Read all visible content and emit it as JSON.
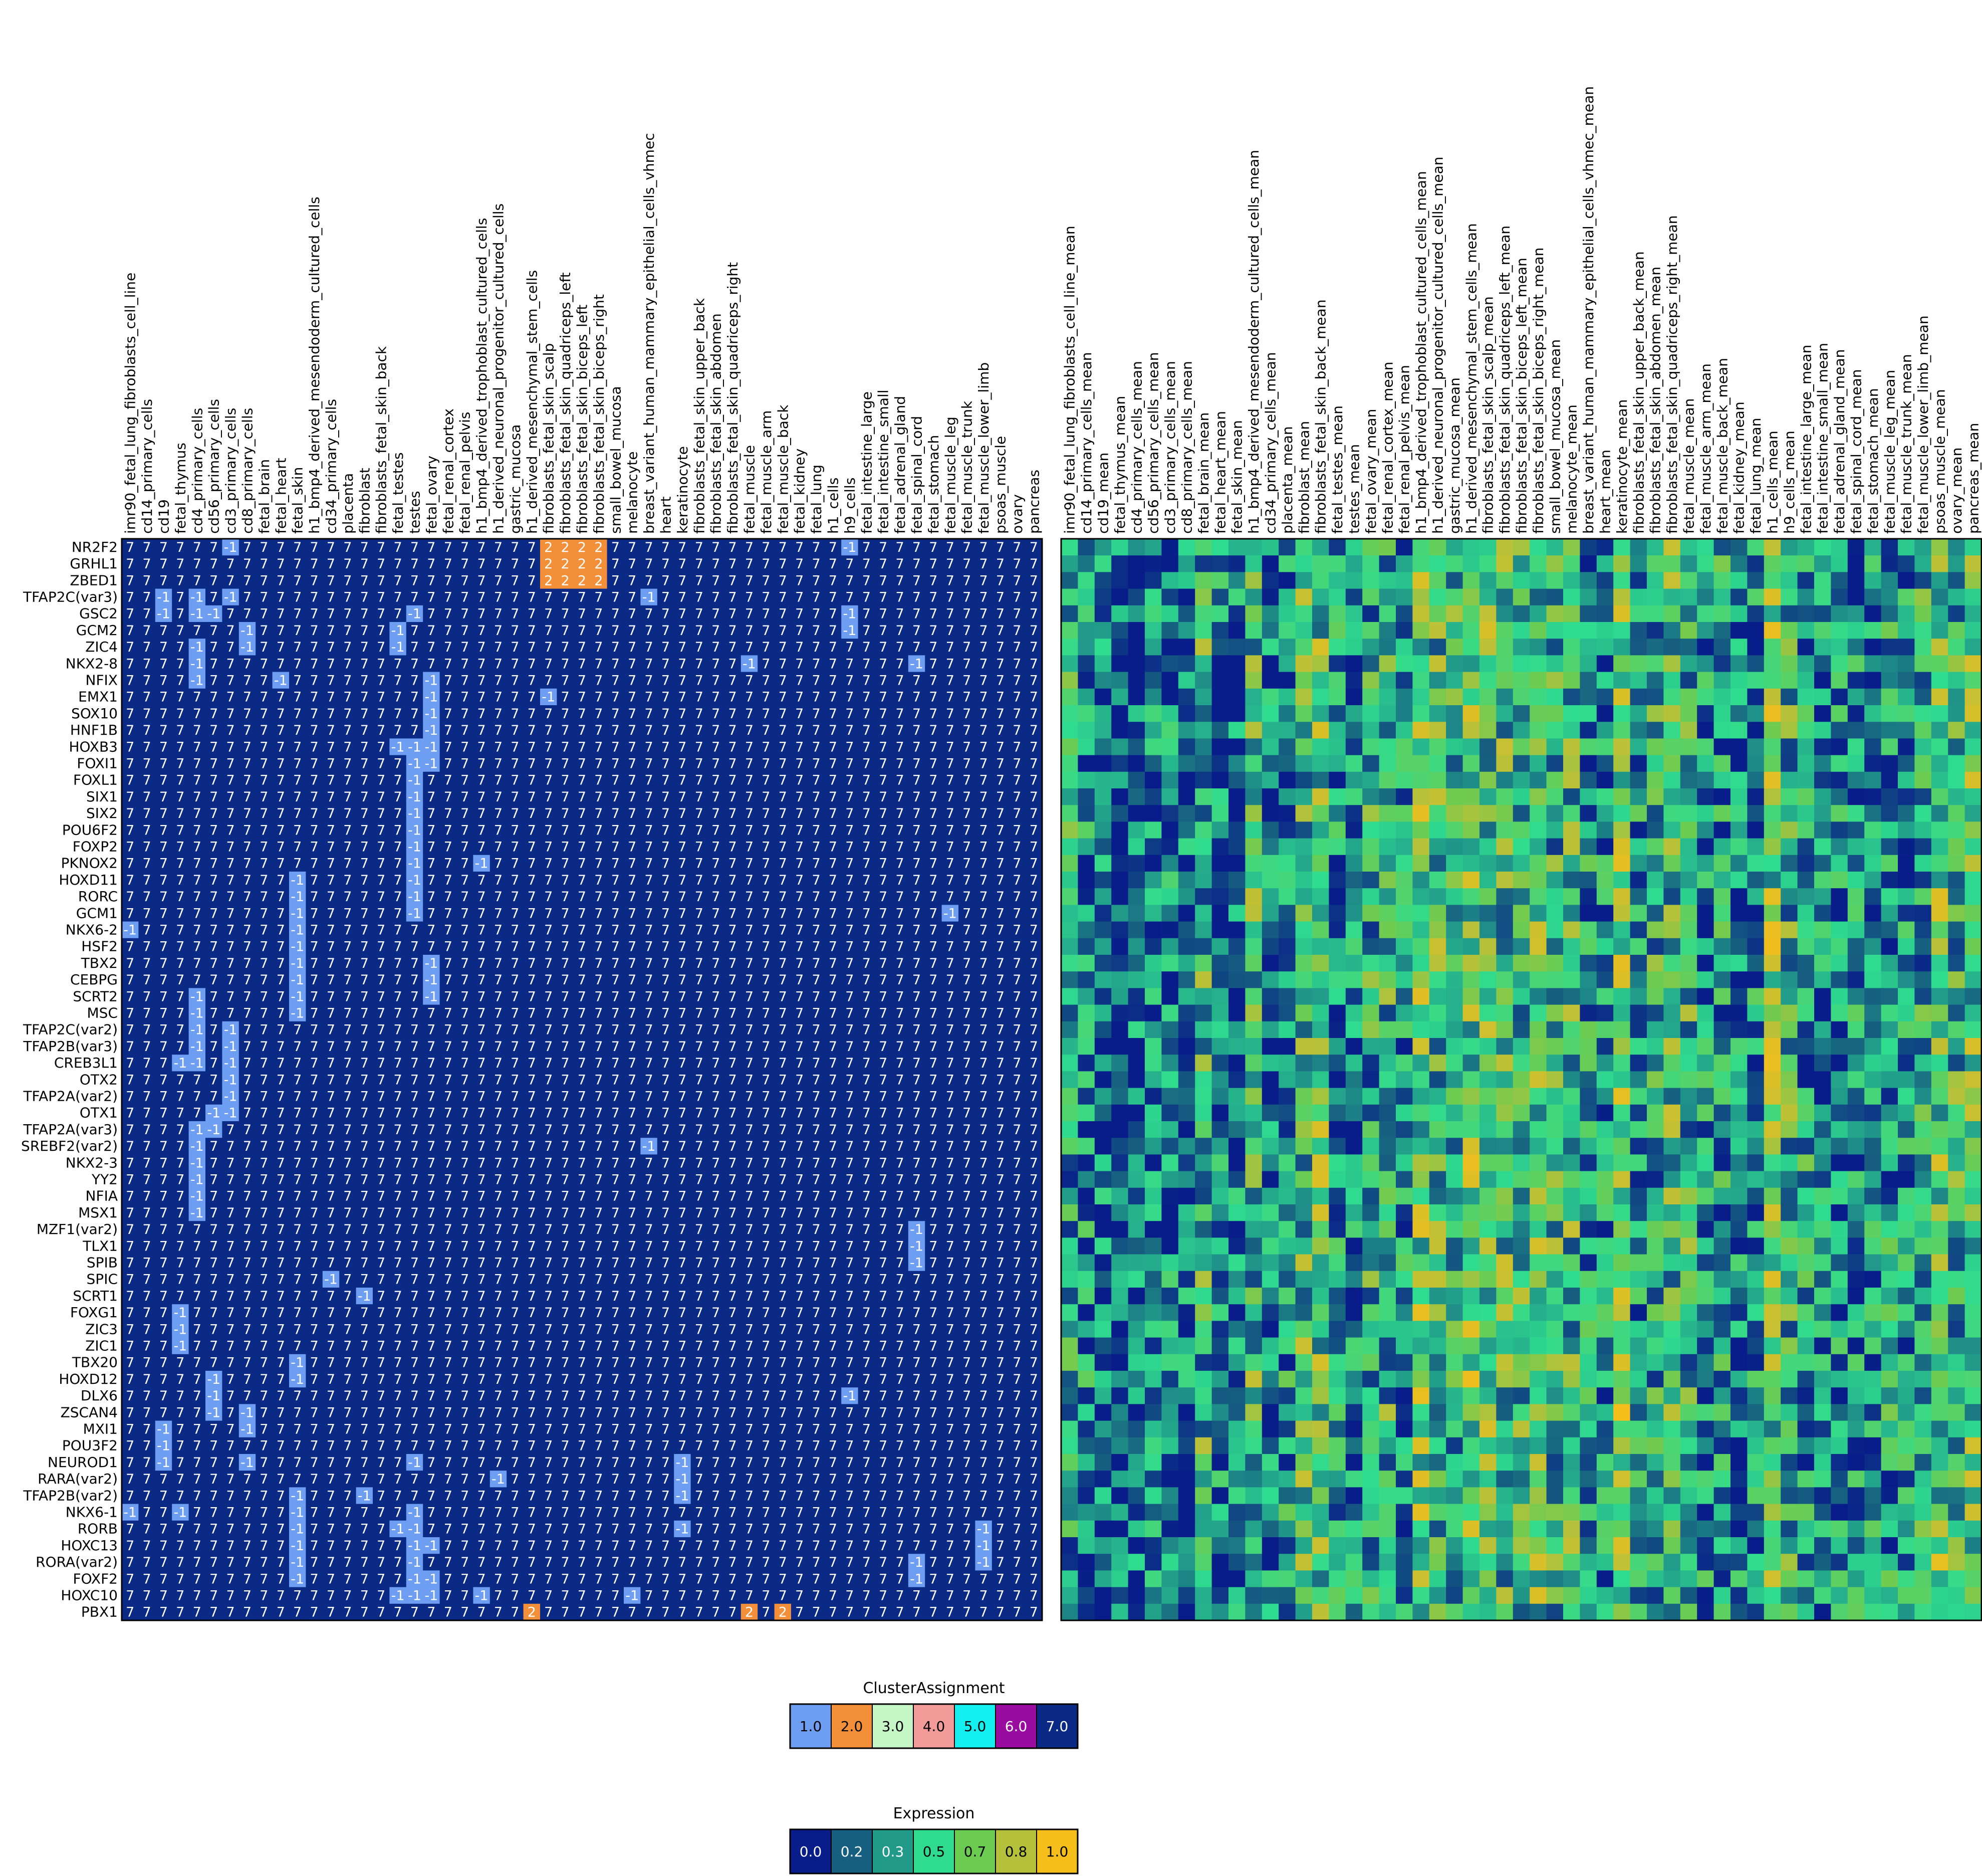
{
  "chart_data": [
    {
      "type": "heatmap",
      "panel": "cluster-assignment",
      "columns": [
        "imr90_fetal_lung_fibroblasts_cell_line",
        "cd14_primary_cells",
        "cd19",
        "fetal_thymus",
        "cd4_primary_cells",
        "cd56_primary_cells",
        "cd3_primary_cells",
        "cd8_primary_cells",
        "fetal_brain",
        "fetal_heart",
        "fetal_skin",
        "h1_bmp4_derived_mesendoderm_cultured_cells",
        "cd34_primary_cells",
        "placenta",
        "fibroblast",
        "fibroblasts_fetal_skin_back",
        "fetal_testes",
        "testes",
        "fetal_ovary",
        "fetal_renal_cortex",
        "fetal_renal_pelvis",
        "h1_bmp4_derived_trophoblast_cultured_cells",
        "h1_derived_neuronal_progenitor_cultured_cells",
        "gastric_mucosa",
        "h1_derived_mesenchymal_stem_cells",
        "fibroblasts_fetal_skin_scalp",
        "fibroblasts_fetal_skin_quadriceps_left",
        "fibroblasts_fetal_skin_biceps_left",
        "fibroblasts_fetal_skin_biceps_right",
        "small_bowel_mucosa",
        "melanocyte",
        "breast_variant_human_mammary_epithelial_cells_vhmec",
        "heart",
        "keratinocyte",
        "fibroblasts_fetal_skin_upper_back",
        "fibroblasts_fetal_skin_abdomen",
        "fibroblasts_fetal_skin_quadriceps_right",
        "fetal_muscle",
        "fetal_muscle_arm",
        "fetal_muscle_back",
        "fetal_kidney",
        "fetal_lung",
        "h1_cells",
        "h9_cells",
        "fetal_intestine_large",
        "fetal_intestine_small",
        "fetal_adrenal_gland",
        "fetal_spinal_cord",
        "fetal_stomach",
        "fetal_muscle_leg",
        "fetal_muscle_trunk",
        "fetal_muscle_lower_limb",
        "psoas_muscle",
        "ovary",
        "pancreas"
      ],
      "rows": [
        "NR2F2",
        "GRHL1",
        "ZBED1",
        "TFAP2C(var3)",
        "GSC2",
        "GCM2",
        "ZIC4",
        "NKX2-8",
        "NFIX",
        "EMX1",
        "SOX10",
        "HNF1B",
        "HOXB3",
        "FOXI1",
        "FOXL1",
        "SIX1",
        "SIX2",
        "POU6F2",
        "FOXP2",
        "PKNOX2",
        "HOXD11",
        "RORC",
        "GCM1",
        "NKX6-2",
        "HSF2",
        "TBX2",
        "CEBPG",
        "SCRT2",
        "MSC",
        "TFAP2C(var2)",
        "TFAP2B(var3)",
        "CREB3L1",
        "OTX2",
        "TFAP2A(var2)",
        "OTX1",
        "TFAP2A(var3)",
        "SREBF2(var2)",
        "NKX2-3",
        "YY2",
        "NFIA",
        "MSX1",
        "MZF1(var2)",
        "TLX1",
        "SPIB",
        "SPIC",
        "SCRT1",
        "FOXG1",
        "ZIC3",
        "ZIC1",
        "TBX20",
        "HOXD12",
        "DLX6",
        "ZSCAN4",
        "MXI1",
        "POU3F2",
        "NEUROD1",
        "RARA(var2)",
        "TFAP2B(var2)",
        "NKX6-1",
        "RORB",
        "HOXC13",
        "RORA(var2)",
        "FOXF2",
        "HOXC10",
        "PBX1"
      ],
      "default_value": 7,
      "exceptions": [
        {
          "row": "NR2F2",
          "values": {
            "6": -1,
            "25": 2,
            "26": 2,
            "27": 2,
            "28": 2,
            "43": -1
          }
        },
        {
          "row": "GRHL1",
          "values": {
            "25": 2,
            "26": 2,
            "27": 2,
            "28": 2
          }
        },
        {
          "row": "ZBED1",
          "values": {
            "25": 2,
            "26": 2,
            "27": 2,
            "28": 2
          }
        },
        {
          "row": "TFAP2C(var3)",
          "values": {
            "2": -1,
            "4": -1,
            "6": -1,
            "31": -1
          }
        },
        {
          "row": "GSC2",
          "values": {
            "2": -1,
            "4": -1,
            "5": -1,
            "17": -1,
            "43": -1
          }
        },
        {
          "row": "GCM2",
          "values": {
            "7": -1,
            "16": -1,
            "43": -1
          }
        },
        {
          "row": "ZIC4",
          "values": {
            "4": -1,
            "7": -1,
            "16": -1
          }
        },
        {
          "row": "NKX2-8",
          "values": {
            "4": -1,
            "37": -1,
            "47": -1
          }
        },
        {
          "row": "NFIX",
          "values": {
            "4": -1,
            "9": -1,
            "18": -1
          }
        },
        {
          "row": "EMX1",
          "values": {
            "18": -1,
            "25": -1
          }
        },
        {
          "row": "SOX10",
          "values": {
            "18": -1
          }
        },
        {
          "row": "HNF1B",
          "values": {
            "18": -1
          }
        },
        {
          "row": "HOXB3",
          "values": {
            "16": -1,
            "17": -1,
            "18": -1
          }
        },
        {
          "row": "FOXI1",
          "values": {
            "17": -1,
            "18": -1
          }
        },
        {
          "row": "FOXL1",
          "values": {
            "17": -1
          }
        },
        {
          "row": "SIX1",
          "values": {
            "17": -1
          }
        },
        {
          "row": "SIX2",
          "values": {
            "17": -1
          }
        },
        {
          "row": "POU6F2",
          "values": {
            "17": -1
          }
        },
        {
          "row": "FOXP2",
          "values": {
            "17": -1
          }
        },
        {
          "row": "PKNOX2",
          "values": {
            "17": -1,
            "21": -1
          }
        },
        {
          "row": "HOXD11",
          "values": {
            "10": -1,
            "17": -1
          }
        },
        {
          "row": "RORC",
          "values": {
            "10": -1,
            "17": -1
          }
        },
        {
          "row": "GCM1",
          "values": {
            "10": -1,
            "17": -1,
            "49": -1
          }
        },
        {
          "row": "NKX6-2",
          "values": {
            "0": -1,
            "10": -1
          }
        },
        {
          "row": "HSF2",
          "values": {
            "10": -1
          }
        },
        {
          "row": "TBX2",
          "values": {
            "10": -1,
            "18": -1
          }
        },
        {
          "row": "CEBPG",
          "values": {
            "10": -1,
            "18": -1
          }
        },
        {
          "row": "SCRT2",
          "values": {
            "4": -1,
            "10": -1,
            "18": -1
          }
        },
        {
          "row": "MSC",
          "values": {
            "4": -1,
            "10": -1
          }
        },
        {
          "row": "TFAP2C(var2)",
          "values": {
            "4": -1,
            "6": -1
          }
        },
        {
          "row": "TFAP2B(var3)",
          "values": {
            "4": -1,
            "6": -1
          }
        },
        {
          "row": "CREB3L1",
          "values": {
            "3": -1,
            "4": -1,
            "6": -1
          }
        },
        {
          "row": "OTX2",
          "values": {
            "6": -1
          }
        },
        {
          "row": "TFAP2A(var2)",
          "values": {
            "6": -1
          }
        },
        {
          "row": "OTX1",
          "values": {
            "5": -1,
            "6": -1
          }
        },
        {
          "row": "TFAP2A(var3)",
          "values": {
            "4": -1,
            "5": -1
          }
        },
        {
          "row": "SREBF2(var2)",
          "values": {
            "4": -1,
            "31": -1
          }
        },
        {
          "row": "NKX2-3",
          "values": {
            "4": -1
          }
        },
        {
          "row": "YY2",
          "values": {
            "4": -1
          }
        },
        {
          "row": "NFIA",
          "values": {
            "4": -1
          }
        },
        {
          "row": "MSX1",
          "values": {
            "4": -1
          }
        },
        {
          "row": "MZF1(var2)",
          "values": {
            "47": -1
          }
        },
        {
          "row": "TLX1",
          "values": {
            "47": -1
          }
        },
        {
          "row": "SPIB",
          "values": {
            "47": -1
          }
        },
        {
          "row": "SPIC",
          "values": {
            "12": -1
          }
        },
        {
          "row": "SCRT1",
          "values": {
            "14": -1
          }
        },
        {
          "row": "FOXG1",
          "values": {
            "3": -1
          }
        },
        {
          "row": "ZIC3",
          "values": {
            "3": -1
          }
        },
        {
          "row": "ZIC1",
          "values": {
            "3": -1
          }
        },
        {
          "row": "TBX20",
          "values": {
            "10": -1
          }
        },
        {
          "row": "HOXD12",
          "values": {
            "5": -1,
            "10": -1
          }
        },
        {
          "row": "DLX6",
          "values": {
            "5": -1,
            "43": -1
          }
        },
        {
          "row": "ZSCAN4",
          "values": {
            "5": -1,
            "7": -1
          }
        },
        {
          "row": "MXI1",
          "values": {
            "2": -1,
            "7": -1
          }
        },
        {
          "row": "POU3F2",
          "values": {
            "2": -1
          }
        },
        {
          "row": "NEUROD1",
          "values": {
            "2": -1,
            "7": -1,
            "17": -1,
            "33": -1
          }
        },
        {
          "row": "RARA(var2)",
          "values": {
            "22": -1,
            "33": -1
          }
        },
        {
          "row": "TFAP2B(var2)",
          "values": {
            "10": -1,
            "14": -1,
            "33": -1
          }
        },
        {
          "row": "NKX6-1",
          "values": {
            "0": -1,
            "3": -1,
            "10": -1,
            "17": -1
          }
        },
        {
          "row": "RORB",
          "values": {
            "10": -1,
            "16": -1,
            "17": -1,
            "33": -1,
            "51": -1
          }
        },
        {
          "row": "HOXC13",
          "values": {
            "10": -1,
            "17": -1,
            "18": -1,
            "51": -1
          }
        },
        {
          "row": "RORA(var2)",
          "values": {
            "10": -1,
            "17": -1,
            "47": -1,
            "51": -1
          }
        },
        {
          "row": "FOXF2",
          "values": {
            "10": -1,
            "17": -1,
            "18": -1,
            "47": -1
          }
        },
        {
          "row": "HOXC10",
          "values": {
            "16": -1,
            "17": -1,
            "18": -1,
            "21": -1,
            "30": -1
          }
        },
        {
          "row": "PBX1",
          "values": {
            "24": 2,
            "37": 2,
            "39": 2
          }
        }
      ],
      "value_colors": {
        "1": "#6e9ef2",
        "2": "#f28f38",
        "7": "#0b2a85",
        "-1": "#6e9ef2"
      },
      "legend": {
        "title": "ClusterAssignment",
        "entries": [
          {
            "label": "1.0",
            "color": "#6e9ef2"
          },
          {
            "label": "2.0",
            "color": "#f28f38"
          },
          {
            "label": "3.0",
            "color": "#c6f5c6"
          },
          {
            "label": "4.0",
            "color": "#f29b98"
          },
          {
            "label": "5.0",
            "color": "#14f0f0"
          },
          {
            "label": "6.0",
            "color": "#9a0ba0"
          },
          {
            "label": "7.0",
            "color": "#0b2a85"
          }
        ]
      }
    },
    {
      "type": "heatmap",
      "panel": "expression",
      "columns": [
        "imr90_fetal_lung_fibroblasts_cell_line_mean",
        "cd14_primary_cells_mean",
        "cd19_mean",
        "fetal_thymus_mean",
        "cd4_primary_cells_mean",
        "cd56_primary_cells_mean",
        "cd3_primary_cells_mean",
        "cd8_primary_cells_mean",
        "fetal_brain_mean",
        "fetal_heart_mean",
        "fetal_skin_mean",
        "h1_bmp4_derived_mesendoderm_cultured_cells_mean",
        "cd34_primary_cells_mean",
        "placenta_mean",
        "fibroblast_mean",
        "fibroblasts_fetal_skin_back_mean",
        "fetal_testes_mean",
        "testes_mean",
        "fetal_ovary_mean",
        "fetal_renal_cortex_mean",
        "fetal_renal_pelvis_mean",
        "h1_bmp4_derived_trophoblast_cultured_cells_mean",
        "h1_derived_neuronal_progenitor_cultured_cells_mean",
        "gastric_mucosa_mean",
        "h1_derived_mesenchymal_stem_cells_mean",
        "fibroblasts_fetal_skin_scalp_mean",
        "fibroblasts_fetal_skin_quadriceps_left_mean",
        "fibroblasts_fetal_skin_biceps_left_mean",
        "fibroblasts_fetal_skin_biceps_right_mean",
        "small_bowel_mucosa_mean",
        "melanocyte_mean",
        "breast_variant_human_mammary_epithelial_cells_vhmec_mean",
        "heart_mean",
        "keratinocyte_mean",
        "fibroblasts_fetal_skin_upper_back_mean",
        "fibroblasts_fetal_skin_abdomen_mean",
        "fibroblasts_fetal_skin_quadriceps_right_mean",
        "fetal_muscle_mean",
        "fetal_muscle_arm_mean",
        "fetal_muscle_back_mean",
        "fetal_kidney_mean",
        "fetal_lung_mean",
        "h1_cells_mean",
        "h9_cells_mean",
        "fetal_intestine_large_mean",
        "fetal_intestine_small_mean",
        "fetal_adrenal_gland_mean",
        "fetal_spinal_cord_mean",
        "fetal_stomach_mean",
        "fetal_muscle_leg_mean",
        "fetal_muscle_trunk_mean",
        "fetal_muscle_lower_limb_mean",
        "psoas_muscle_mean",
        "ovary_mean",
        "pancreas_mean"
      ],
      "rows": "same as cluster-assignment panel",
      "column_profile": [
        0.4,
        0.3,
        0.2,
        0.1,
        0.15,
        0.2,
        0.25,
        0.2,
        0.45,
        0.25,
        0.2,
        0.5,
        0.2,
        0.35,
        0.5,
        0.55,
        0.3,
        0.25,
        0.4,
        0.45,
        0.3,
        0.6,
        0.5,
        0.45,
        0.6,
        0.55,
        0.5,
        0.5,
        0.55,
        0.45,
        0.5,
        0.35,
        0.3,
        0.65,
        0.35,
        0.4,
        0.5,
        0.45,
        0.3,
        0.35,
        0.25,
        0.3,
        0.6,
        0.45,
        0.35,
        0.25,
        0.3,
        0.3,
        0.3,
        0.35,
        0.3,
        0.4,
        0.6,
        0.45,
        0.55
      ],
      "column_values_estimated": true,
      "range": [
        0.0,
        1.0
      ],
      "legend": {
        "title": "Expression",
        "entries": [
          {
            "label": "0.0",
            "color": "#081d8a"
          },
          {
            "label": "0.2",
            "color": "#165f80"
          },
          {
            "label": "0.3",
            "color": "#219a8a"
          },
          {
            "label": "0.5",
            "color": "#2fdc8f"
          },
          {
            "label": "0.7",
            "color": "#6ccc52"
          },
          {
            "label": "0.8",
            "color": "#b5c13a"
          },
          {
            "label": "1.0",
            "color": "#f5be1a"
          }
        ]
      }
    }
  ]
}
